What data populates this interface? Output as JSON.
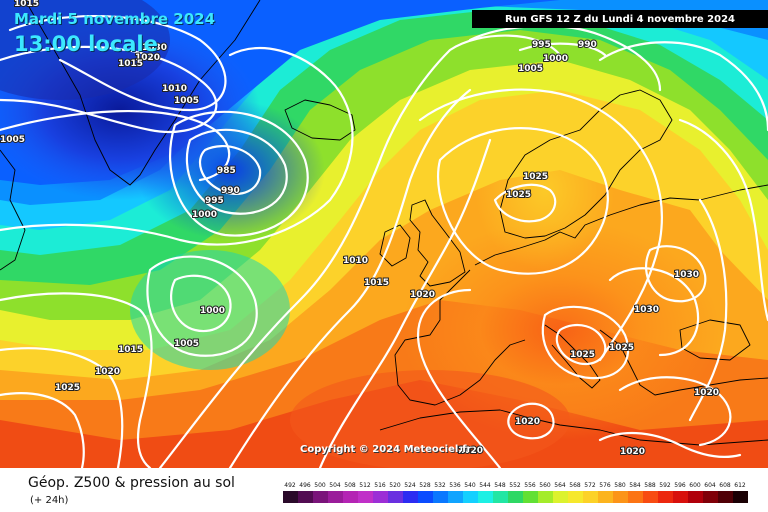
{
  "header": {
    "date": "Mardi 5 novembre 2024",
    "time": "13:00 locale",
    "run": "Run GFS 12 Z du Lundi 4 novembre 2024"
  },
  "copyright": "Copyright © 2024 Meteociel.fr",
  "footer": {
    "title": "Géop. Z500 & pression au sol",
    "subtitle": "(+ 24h)"
  },
  "legend": {
    "values": [
      "492",
      "496",
      "500",
      "504",
      "508",
      "512",
      "516",
      "520",
      "524",
      "528",
      "532",
      "536",
      "540",
      "544",
      "548",
      "552",
      "556",
      "560",
      "564",
      "568",
      "572",
      "576",
      "580",
      "584",
      "588",
      "592",
      "596",
      "600",
      "604",
      "608",
      "612"
    ],
    "colors": [
      "#2a0a2a",
      "#520c52",
      "#7a147a",
      "#9a1c9a",
      "#b424b4",
      "#c030c8",
      "#9c2fd6",
      "#6a30e0",
      "#2c2cf2",
      "#0a4cff",
      "#0a78ff",
      "#10a4ff",
      "#14d0ff",
      "#1cf0e4",
      "#22e6a4",
      "#2ed864",
      "#62e034",
      "#a4ec2a",
      "#dcf22e",
      "#f6e82c",
      "#fcd228",
      "#fcb41e",
      "#fc9418",
      "#fc7414",
      "#f84c12",
      "#ec280e",
      "#d8100c",
      "#b0000a",
      "#800008",
      "#500006",
      "#1a0004"
    ]
  },
  "pressure_labels": [
    {
      "text": "1015"
    },
    {
      "text": "1030"
    },
    {
      "text": "1020"
    },
    {
      "text": "1015"
    },
    {
      "text": "1010"
    },
    {
      "text": "1005"
    },
    {
      "text": "1005"
    },
    {
      "text": "995"
    },
    {
      "text": "990"
    },
    {
      "text": "1005"
    },
    {
      "text": "1000"
    },
    {
      "text": "985"
    },
    {
      "text": "990"
    },
    {
      "text": "995"
    },
    {
      "text": "1000"
    },
    {
      "text": "1010"
    },
    {
      "text": "1015"
    },
    {
      "text": "1020"
    },
    {
      "text": "1025"
    },
    {
      "text": "1025"
    },
    {
      "text": "1030"
    },
    {
      "text": "1030"
    },
    {
      "text": "1025"
    },
    {
      "text": "1025"
    },
    {
      "text": "1000"
    },
    {
      "text": "1005"
    },
    {
      "text": "1015"
    },
    {
      "text": "1020"
    },
    {
      "text": "1025"
    },
    {
      "text": "1020"
    },
    {
      "text": "1020"
    },
    {
      "text": "1020"
    },
    {
      "text": "1020"
    }
  ]
}
